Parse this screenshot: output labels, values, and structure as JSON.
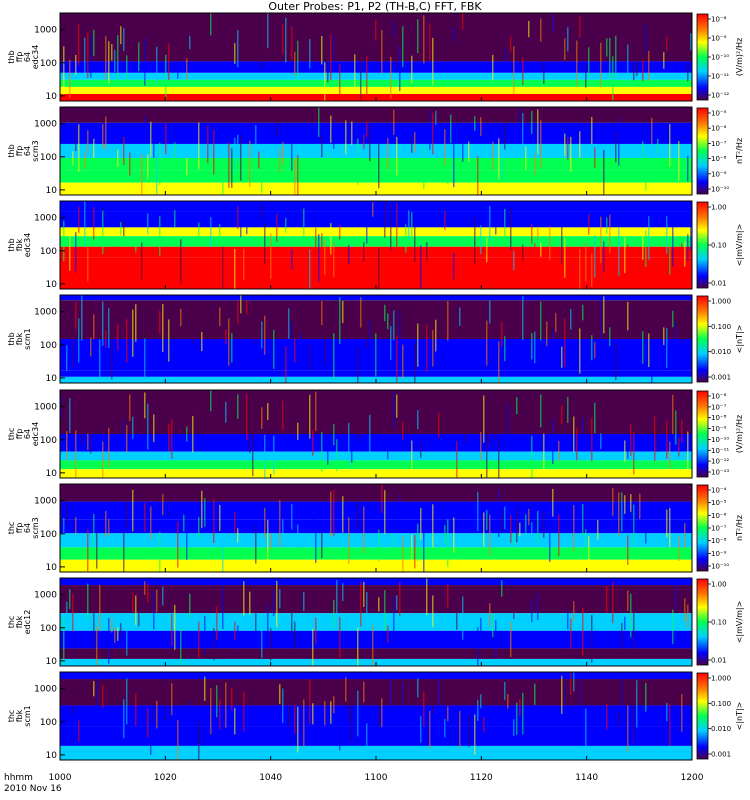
{
  "title": "Outer Probes: P1, P2 (TH-B,C) FFT, FBK",
  "time_axis": {
    "label_line1": "hhmm",
    "label_line2": "2010 Nov 16",
    "ticks": [
      "1000",
      "1020",
      "1040",
      "1100",
      "1120",
      "1140",
      "1200"
    ]
  },
  "colors": {
    "low": "#4b004b",
    "blue": "#0000ff",
    "cyan": "#00d0ff",
    "green": "#00ff50",
    "yellow": "#ffff00",
    "orange": "#ff7a00",
    "red": "#ff0000"
  },
  "chart_data": [
    {
      "type": "heatmap",
      "panel_label": [
        "thb",
        "ffp",
        "64",
        "edc34"
      ],
      "colorbar_label": "(V/m)²/Hz",
      "y_ticks": [
        "1000",
        "100",
        "10"
      ],
      "colorbar_ticks": [
        "10⁻⁸",
        "10⁻⁹",
        "10⁻¹⁰",
        "10⁻¹¹",
        "10⁻¹²"
      ],
      "y_scale": "log",
      "colorbar_scale": "log",
      "x_range": [
        "1000",
        "1200"
      ]
    },
    {
      "type": "heatmap",
      "panel_label": [
        "thb",
        "ffp",
        "64",
        "scm3"
      ],
      "colorbar_label": "nT²/Hz",
      "y_ticks": [
        "1000",
        "100",
        "10"
      ],
      "colorbar_ticks": [
        "10⁻⁵",
        "10⁻⁶",
        "10⁻⁷",
        "10⁻⁸",
        "10⁻⁹",
        "10⁻¹⁰"
      ],
      "y_scale": "log",
      "colorbar_scale": "log",
      "x_range": [
        "1000",
        "1200"
      ]
    },
    {
      "type": "heatmap",
      "panel_label": [
        "thb",
        "fbk",
        "edc34"
      ],
      "colorbar_label": "<|mV/m|>",
      "y_ticks": [
        "1000",
        "100",
        "10"
      ],
      "colorbar_ticks": [
        "1.00",
        "0.10",
        "0.01"
      ],
      "y_scale": "log",
      "colorbar_scale": "log",
      "x_range": [
        "1000",
        "1200"
      ]
    },
    {
      "type": "heatmap",
      "panel_label": [
        "thb",
        "fbk",
        "scm1"
      ],
      "colorbar_label": "<|nT|>",
      "y_ticks": [
        "1000",
        "100",
        "10"
      ],
      "colorbar_ticks": [
        "1.000",
        "0.100",
        "0.010",
        "0.001"
      ],
      "y_scale": "log",
      "colorbar_scale": "log",
      "x_range": [
        "1000",
        "1200"
      ]
    },
    {
      "type": "heatmap",
      "panel_label": [
        "thc",
        "ffp",
        "64",
        "edc34"
      ],
      "colorbar_label": "(V/m)²/Hz",
      "y_ticks": [
        "1000",
        "100",
        "10"
      ],
      "colorbar_ticks": [
        "10⁻⁶",
        "10⁻⁷",
        "10⁻⁸",
        "10⁻⁹",
        "10⁻¹⁰",
        "10⁻¹¹",
        "10⁻¹²",
        "10⁻¹³"
      ],
      "y_scale": "log",
      "colorbar_scale": "log",
      "x_range": [
        "1000",
        "1200"
      ]
    },
    {
      "type": "heatmap",
      "panel_label": [
        "thc",
        "ffp",
        "64",
        "scm3"
      ],
      "colorbar_label": "nT²/Hz",
      "y_ticks": [
        "1000",
        "100",
        "10"
      ],
      "colorbar_ticks": [
        "10⁻⁴",
        "10⁻⁵",
        "10⁻⁶",
        "10⁻⁷",
        "10⁻⁸",
        "10⁻⁹",
        "10⁻¹⁰"
      ],
      "y_scale": "log",
      "colorbar_scale": "log",
      "x_range": [
        "1000",
        "1200"
      ]
    },
    {
      "type": "heatmap",
      "panel_label": [
        "thc",
        "fbk",
        "edc12"
      ],
      "colorbar_label": "<|mV/m|>",
      "y_ticks": [
        "1000",
        "100",
        "10"
      ],
      "colorbar_ticks": [
        "1.00",
        "0.10",
        "0.01"
      ],
      "y_scale": "log",
      "colorbar_scale": "log",
      "x_range": [
        "1000",
        "1200"
      ]
    },
    {
      "type": "heatmap",
      "panel_label": [
        "thc",
        "fbk",
        "scm1"
      ],
      "colorbar_label": "<|nT|>",
      "y_ticks": [
        "1000",
        "100",
        "10"
      ],
      "colorbar_ticks": [
        "1.000",
        "0.100",
        "0.010",
        "0.001"
      ],
      "y_scale": "log",
      "colorbar_scale": "log",
      "x_range": [
        "1000",
        "1200"
      ]
    }
  ]
}
